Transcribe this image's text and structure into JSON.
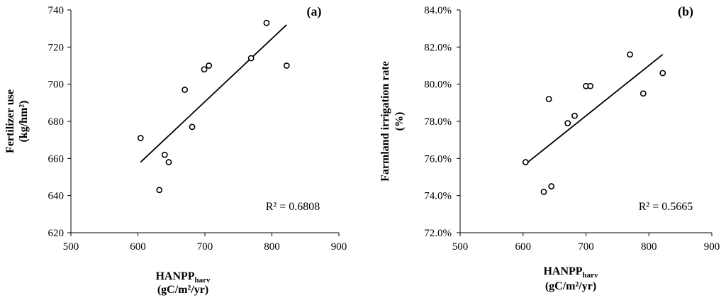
{
  "chart_data": [
    {
      "type": "scatter",
      "panel_label": "(a)",
      "xlabel_main": "HANPP",
      "xlabel_sub": "harv",
      "xlabel_units": "(gC/m²/yr)",
      "ylabel_line1": "Fertilizer use",
      "ylabel_line2": "(kg/hm²)",
      "xlim": [
        500,
        900
      ],
      "ylim": [
        620,
        740
      ],
      "xticks": [
        "500",
        "600",
        "700",
        "800",
        "900"
      ],
      "yticks": [
        "620",
        "640",
        "660",
        "680",
        "700",
        "720",
        "740"
      ],
      "x": [
        604,
        632,
        640,
        646,
        670,
        681,
        699,
        706,
        769,
        792,
        822
      ],
      "y": [
        671,
        643,
        662,
        658,
        697,
        677,
        708,
        710,
        714,
        733,
        710
      ],
      "trendline": {
        "x": [
          604,
          822
        ],
        "y": [
          658,
          732
        ]
      },
      "r2_text": "R² = 0.6808"
    },
    {
      "type": "scatter",
      "panel_label": "(b)",
      "xlabel_main": "HANPP",
      "xlabel_sub": "harv",
      "xlabel_units": "(gC/m²/yr)",
      "ylabel_line1": "Farmland irrigation rate",
      "ylabel_line2": "(%)",
      "xlim": [
        500,
        900
      ],
      "ylim": [
        72.0,
        84.0
      ],
      "xticks": [
        "500",
        "600",
        "700",
        "800",
        "900"
      ],
      "yticks": [
        "72.0%",
        "74.0%",
        "76.0%",
        "78.0%",
        "80.0%",
        "82.0%",
        "84.0%"
      ],
      "x": [
        604,
        633,
        641,
        645,
        671,
        682,
        700,
        707,
        770,
        791,
        822
      ],
      "y": [
        75.8,
        74.2,
        79.2,
        74.5,
        77.9,
        78.3,
        79.9,
        79.9,
        81.6,
        79.5,
        80.6
      ],
      "trendline": {
        "x": [
          604,
          822
        ],
        "y": [
          75.7,
          81.6
        ]
      },
      "r2_text": "R² = 0.5665"
    }
  ]
}
